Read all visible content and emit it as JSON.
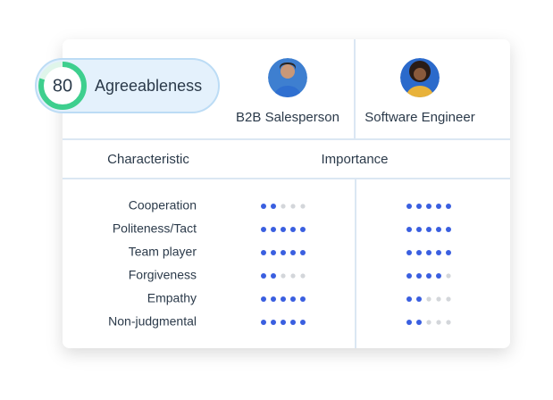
{
  "badge": {
    "score": 80,
    "score_lim": [
      0,
      100
    ],
    "label": "Agreeableness"
  },
  "roles": [
    "B2B Salesperson",
    "Software Engineer"
  ],
  "table": {
    "headers": [
      "Characteristic",
      "Importance"
    ],
    "rating_max": 5,
    "rows": [
      {
        "characteristic": "Cooperation",
        "ratings": [
          2,
          5
        ]
      },
      {
        "characteristic": "Politeness/Tact",
        "ratings": [
          5,
          5
        ]
      },
      {
        "characteristic": "Team player",
        "ratings": [
          5,
          5
        ]
      },
      {
        "characteristic": "Forgiveness",
        "ratings": [
          2,
          4
        ]
      },
      {
        "characteristic": "Empathy",
        "ratings": [
          5,
          2
        ]
      },
      {
        "characteristic": "Non-judgmental",
        "ratings": [
          5,
          2
        ]
      }
    ]
  }
}
